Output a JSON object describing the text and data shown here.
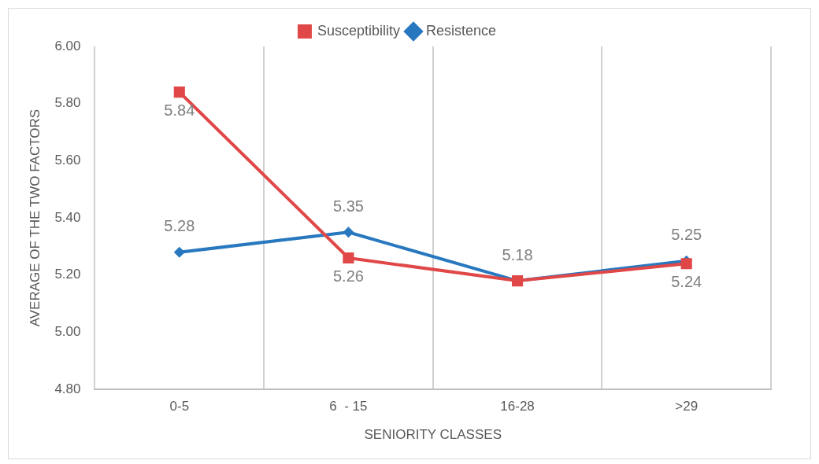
{
  "chart_data": {
    "type": "line",
    "xlabel": "SENIORITY CLASSES",
    "ylabel": "AVERAGE OF THE TWO FACTORS",
    "categories": [
      "0-5",
      "6  - 15",
      "16-28",
      ">29"
    ],
    "series": [
      {
        "name": "Resistence",
        "color": "#2878c0",
        "marker": "diamond",
        "values": [
          5.28,
          5.35,
          5.18,
          5.25
        ],
        "value_labels": [
          "5.28",
          "5.35",
          "5.18",
          "5.25"
        ]
      },
      {
        "name": "Susceptibility",
        "color": "#e04848",
        "marker": "square",
        "values": [
          5.84,
          5.26,
          5.18,
          5.24
        ],
        "value_labels": [
          "5.84",
          "5.26",
          null,
          "5.24"
        ]
      }
    ],
    "ylim": [
      4.8,
      6.0
    ],
    "yticks": [
      {
        "value": 4.8,
        "label": "4.80"
      },
      {
        "value": 5.0,
        "label": "5.00"
      },
      {
        "value": 5.2,
        "label": "5.20"
      },
      {
        "value": 5.4,
        "label": "5.40"
      },
      {
        "value": 5.6,
        "label": "5.60"
      },
      {
        "value": 5.8,
        "label": "5.80"
      },
      {
        "value": 6.0,
        "label": "6.00"
      }
    ],
    "grid": "x",
    "legend": "top",
    "line_style": "solid"
  }
}
